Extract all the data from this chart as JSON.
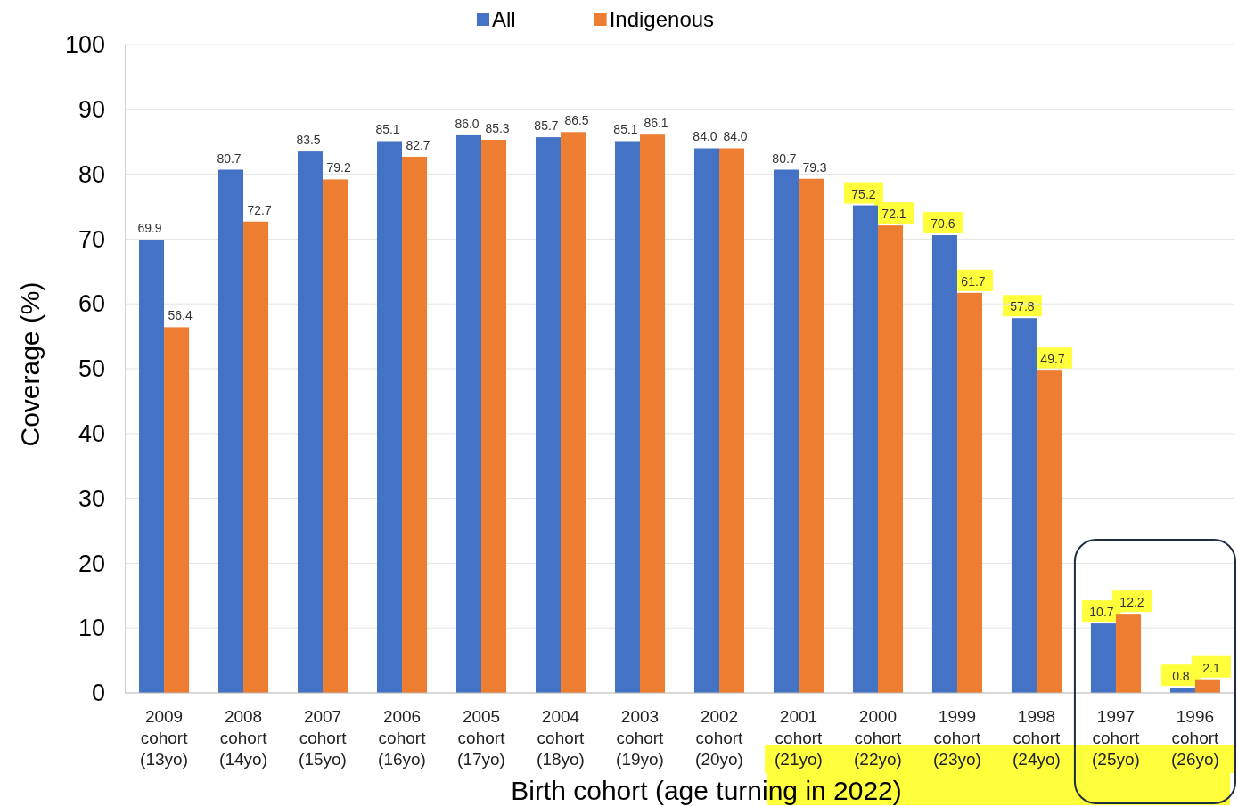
{
  "chart_data": {
    "type": "bar",
    "xlabel": "Birth cohort (age turning in 2022)",
    "ylabel": "Coverage (%)",
    "categories": [
      "2009 cohort (13yo)",
      "2008 cohort (14yo)",
      "2007 cohort (15yo)",
      "2006 cohort (16yo)",
      "2005 cohort (17yo)",
      "2004 cohort (18yo)",
      "2003 cohort (19yo)",
      "2002 cohort (20yo)",
      "2001 cohort (21yo)",
      "2000 cohort (22yo)",
      "1999 cohort (23yo)",
      "1998 cohort (24yo)",
      "1997 cohort (25yo)",
      "1996 cohort (26yo)"
    ],
    "series": [
      {
        "name": "All",
        "color": "#4472c4",
        "values": [
          69.9,
          80.7,
          83.5,
          85.1,
          86.0,
          85.7,
          85.1,
          84.0,
          80.7,
          75.2,
          70.6,
          57.8,
          10.7,
          0.8
        ],
        "value_labels": [
          "69.9",
          "80.7",
          "83.5",
          "85.1",
          "86.0",
          "85.7",
          "85.1",
          "84.0",
          "80.7",
          "75.2",
          "70.6",
          "57.8",
          "10.7",
          "0.8"
        ]
      },
      {
        "name": "Indigenous",
        "color": "#ed7d31",
        "values": [
          56.4,
          72.7,
          79.2,
          82.7,
          85.3,
          86.5,
          86.1,
          84.0,
          79.3,
          72.1,
          61.7,
          49.7,
          12.2,
          2.1
        ],
        "value_labels": [
          "56.4",
          "72.7",
          "79.2",
          "82.7",
          "85.3",
          "86.5",
          "86.1",
          "84.0",
          "79.3",
          "72.1",
          "61.7",
          "49.7",
          "12.2",
          "2.1"
        ]
      }
    ],
    "ylim": [
      0,
      100
    ],
    "yticks": [
      0,
      10,
      20,
      30,
      40,
      50,
      60,
      70,
      80,
      90,
      100
    ],
    "grid": "y",
    "legend": "top"
  }
}
